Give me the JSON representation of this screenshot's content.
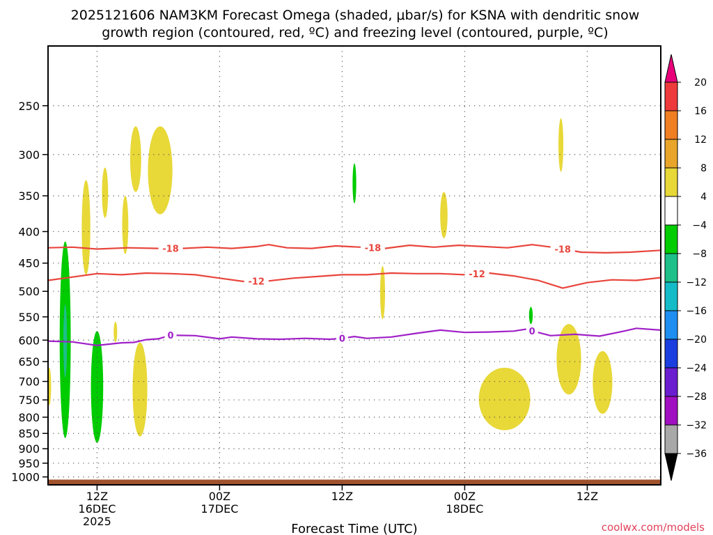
{
  "chart_data": {
    "type": "contour",
    "title_line1": "2025121606 NAM3KM Forecast Omega (shaded, μbar/s) for KSNA with dendritic snow",
    "title_line2": "growth region (contoured, red, ºC) and freezing level (contoured, purple, ºC)",
    "xlabel": "Forecast Time (UTC)",
    "credit": "coolwx.com/models",
    "x_range_hours": [
      -8,
      92
    ],
    "x_ticks": [
      {
        "hour": 0,
        "lines": [
          "12Z",
          "16DEC",
          "2025"
        ]
      },
      {
        "hour": 20,
        "lines": [
          "00Z",
          "17DEC"
        ]
      },
      {
        "hour": 40,
        "lines": [
          "12Z"
        ]
      },
      {
        "hour": 60,
        "lines": [
          "00Z",
          "18DEC"
        ]
      },
      {
        "hour": 80,
        "lines": [
          "12Z"
        ]
      }
    ],
    "y_range_hpa": [
      1030,
      200
    ],
    "y_ticks": [
      250,
      300,
      350,
      400,
      450,
      500,
      550,
      600,
      650,
      700,
      750,
      800,
      850,
      900,
      950,
      1000
    ],
    "gridlines": "dotted",
    "contour_lines": [
      {
        "label": "-18",
        "color": "#e8453c",
        "points": [
          [
            -8,
            425
          ],
          [
            -4,
            424
          ],
          [
            0,
            427
          ],
          [
            5,
            425
          ],
          [
            10,
            426
          ],
          [
            14,
            426
          ],
          [
            18,
            424
          ],
          [
            22,
            426
          ],
          [
            26,
            423
          ],
          [
            28,
            420
          ],
          [
            31,
            425
          ],
          [
            35,
            426
          ],
          [
            39,
            422
          ],
          [
            43,
            424
          ],
          [
            47,
            426
          ],
          [
            51,
            421
          ],
          [
            55,
            424
          ],
          [
            59,
            421
          ],
          [
            63,
            423
          ],
          [
            67,
            425
          ],
          [
            71,
            420
          ],
          [
            75,
            425
          ],
          [
            79,
            432
          ],
          [
            83,
            433
          ],
          [
            87,
            432
          ],
          [
            92,
            429
          ]
        ],
        "label_hours": [
          12,
          45,
          76
        ]
      },
      {
        "label": "-12",
        "color": "#e8453c",
        "points": [
          [
            -8,
            480
          ],
          [
            -4,
            474
          ],
          [
            0,
            468
          ],
          [
            4,
            470
          ],
          [
            8,
            467
          ],
          [
            12,
            468
          ],
          [
            16,
            470
          ],
          [
            20,
            476
          ],
          [
            24,
            482
          ],
          [
            28,
            481
          ],
          [
            32,
            476
          ],
          [
            36,
            473
          ],
          [
            40,
            470
          ],
          [
            44,
            470
          ],
          [
            48,
            467
          ],
          [
            52,
            468
          ],
          [
            56,
            468
          ],
          [
            60,
            470
          ],
          [
            64,
            467
          ],
          [
            68,
            472
          ],
          [
            72,
            480
          ],
          [
            74,
            487
          ],
          [
            76,
            494
          ],
          [
            80,
            484
          ],
          [
            84,
            479
          ],
          [
            88,
            480
          ],
          [
            92,
            475
          ]
        ],
        "label_hours": [
          26,
          62
        ]
      },
      {
        "label": "0",
        "color": "#a020c8",
        "points": [
          [
            -8,
            602
          ],
          [
            -4,
            604
          ],
          [
            0,
            612
          ],
          [
            4,
            606
          ],
          [
            6,
            605
          ],
          [
            8,
            599
          ],
          [
            10,
            597
          ],
          [
            12,
            589
          ],
          [
            16,
            590
          ],
          [
            20,
            597
          ],
          [
            22,
            593
          ],
          [
            26,
            597
          ],
          [
            30,
            598
          ],
          [
            34,
            596
          ],
          [
            38,
            598
          ],
          [
            40,
            596
          ],
          [
            42,
            592
          ],
          [
            44,
            596
          ],
          [
            48,
            593
          ],
          [
            52,
            585
          ],
          [
            56,
            578
          ],
          [
            60,
            583
          ],
          [
            64,
            582
          ],
          [
            68,
            580
          ],
          [
            70,
            576
          ],
          [
            74,
            590
          ],
          [
            78,
            587
          ],
          [
            82,
            591
          ],
          [
            86,
            580
          ],
          [
            88,
            574
          ],
          [
            92,
            578
          ]
        ],
        "label_hours": [
          12,
          40,
          71
        ]
      }
    ],
    "omega_regions": [
      {
        "value_range": [
          4,
          8
        ],
        "center": [
          -7.8,
          715
        ],
        "half_width_hours": 0.3,
        "p_top": 665,
        "p_bottom": 765
      },
      {
        "value_range": [
          4,
          8
        ],
        "center": [
          -1.8,
          400
        ],
        "half_width_hours": 0.7,
        "p_top": 330,
        "p_bottom": 470
      },
      {
        "value_range": [
          4,
          8
        ],
        "center": [
          1.3,
          345
        ],
        "half_width_hours": 0.5,
        "p_top": 315,
        "p_bottom": 380
      },
      {
        "value_range": [
          4,
          8
        ],
        "center": [
          4.6,
          395
        ],
        "half_width_hours": 0.5,
        "p_top": 350,
        "p_bottom": 435
      },
      {
        "value_range": [
          4,
          8
        ],
        "center": [
          6.3,
          305
        ],
        "half_width_hours": 0.9,
        "p_top": 270,
        "p_bottom": 345
      },
      {
        "value_range": [
          4,
          8
        ],
        "center": [
          10.3,
          325
        ],
        "half_width_hours": 2.0,
        "p_top": 270,
        "p_bottom": 375
      },
      {
        "value_range": [
          4,
          8
        ],
        "center": [
          3.0,
          580
        ],
        "half_width_hours": 0.2,
        "p_top": 560,
        "p_bottom": 605
      },
      {
        "value_range": [
          4,
          8
        ],
        "center": [
          7.0,
          745
        ],
        "half_width_hours": 1.2,
        "p_top": 605,
        "p_bottom": 860
      },
      {
        "value_range": [
          4,
          8
        ],
        "center": [
          46.6,
          490
        ],
        "half_width_hours": 0.4,
        "p_top": 455,
        "p_bottom": 555
      },
      {
        "value_range": [
          4,
          8
        ],
        "center": [
          56.6,
          375
        ],
        "half_width_hours": 0.6,
        "p_top": 345,
        "p_bottom": 410
      },
      {
        "value_range": [
          4,
          8
        ],
        "center": [
          66.5,
          735
        ],
        "half_width_hours": 4.2,
        "p_top": 665,
        "p_bottom": 840
      },
      {
        "value_range": [
          4,
          8
        ],
        "center": [
          75.7,
          290
        ],
        "half_width_hours": 0.4,
        "p_top": 262,
        "p_bottom": 320
      },
      {
        "value_range": [
          4,
          8
        ],
        "center": [
          77.0,
          660
        ],
        "half_width_hours": 2.0,
        "p_top": 565,
        "p_bottom": 735
      },
      {
        "value_range": [
          4,
          8
        ],
        "center": [
          82.5,
          710
        ],
        "half_width_hours": 1.6,
        "p_top": 625,
        "p_bottom": 790
      },
      {
        "value_range": [
          -8,
          -4
        ],
        "center": [
          -5.2,
          640
        ],
        "half_width_hours": 0.9,
        "p_top": 415,
        "p_bottom": 865
      },
      {
        "value_range": [
          -12,
          -8
        ],
        "center": [
          -5.2,
          600
        ],
        "half_width_hours": 0.3,
        "p_top": 525,
        "p_bottom": 690
      },
      {
        "value_range": [
          -8,
          -4
        ],
        "center": [
          0.0,
          720
        ],
        "half_width_hours": 1.0,
        "p_top": 580,
        "p_bottom": 880
      },
      {
        "value_range": [
          -8,
          -4
        ],
        "center": [
          42.0,
          330
        ],
        "half_width_hours": 0.3,
        "p_top": 310,
        "p_bottom": 360
      },
      {
        "value_range": [
          -8,
          -4
        ],
        "center": [
          70.8,
          545
        ],
        "half_width_hours": 0.3,
        "p_top": 530,
        "p_bottom": 565
      }
    ],
    "terrain_band_hpa": [
      1010,
      1030
    ],
    "colorbar": {
      "units": "μbar/s",
      "levels": [
        "20",
        "16",
        "12",
        "8",
        "4",
        "−4",
        "−8",
        "−12",
        "−16",
        "−20",
        "−24",
        "−28",
        "−32",
        "−36"
      ],
      "colors": [
        "#e8007a",
        "#ee3a3a",
        "#f07e22",
        "#e8a52a",
        "#e8d838",
        "#ffffff",
        "#00cc00",
        "#1cc088",
        "#14bcc8",
        "#1e8ef0",
        "#1a3ee0",
        "#6a1ed0",
        "#a010c0",
        "#a8a8a8",
        "#000000"
      ]
    }
  }
}
